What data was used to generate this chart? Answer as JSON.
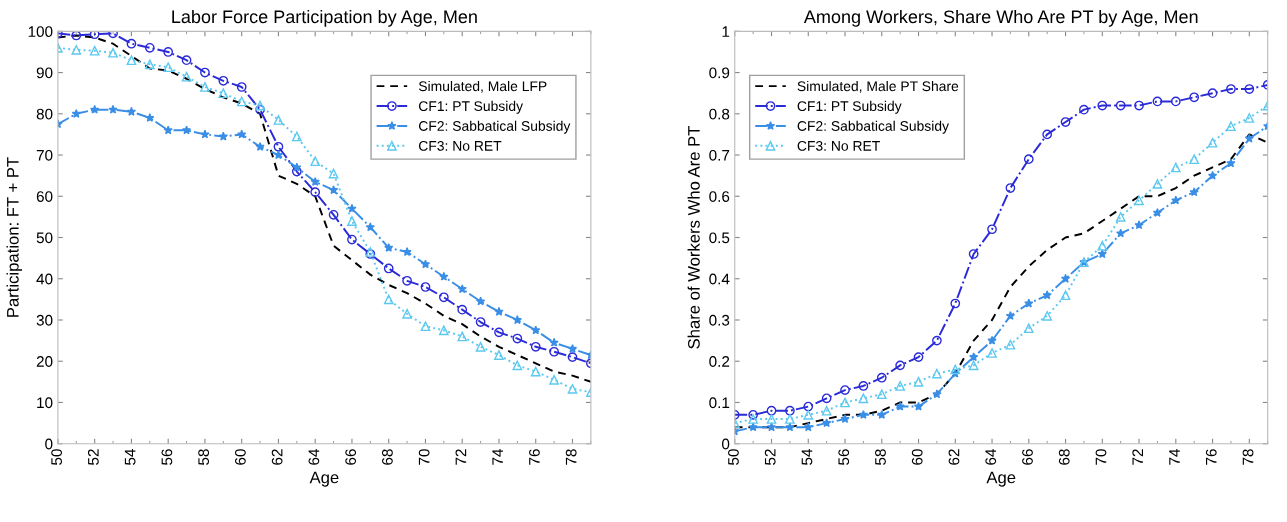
{
  "chart_data": [
    {
      "type": "line",
      "title": "Labor Force Participation by Age, Men",
      "xlabel": "Age",
      "ylabel": "Participation: FT + PT",
      "x": [
        50,
        51,
        52,
        53,
        54,
        55,
        56,
        57,
        58,
        59,
        60,
        61,
        62,
        63,
        64,
        65,
        66,
        67,
        68,
        69,
        70,
        71,
        72,
        73,
        74,
        75,
        76,
        77,
        78,
        79
      ],
      "xlim": [
        50,
        79
      ],
      "xticks": [
        50,
        52,
        54,
        56,
        58,
        60,
        62,
        64,
        66,
        68,
        70,
        72,
        74,
        76,
        78
      ],
      "ylim": [
        0,
        100
      ],
      "yticks": [
        0,
        10,
        20,
        30,
        40,
        50,
        60,
        70,
        80,
        90,
        100
      ],
      "grid": false,
      "legend": "top right",
      "series": [
        {
          "name": "Simulated, Male LFP",
          "color": "#000000",
          "line_style": "dashed",
          "marker": "none",
          "values": [
            98.5,
            99,
            98.5,
            97,
            94,
            91,
            90.5,
            88.5,
            86,
            84,
            82.5,
            80,
            65,
            63,
            60,
            48,
            44.5,
            41,
            38.5,
            36.5,
            34,
            31,
            29,
            26,
            23.5,
            21.5,
            19.5,
            17.5,
            16.5,
            15
          ]
        },
        {
          "name": "CF1: PT Subsidy",
          "color": "#2a2ad8",
          "line_style": "dashdot",
          "marker": "circle",
          "values": [
            99.5,
            99,
            99.3,
            99.5,
            97,
            96,
            95,
            93,
            90,
            88,
            86.5,
            81,
            72,
            66,
            61,
            55.5,
            49.5,
            46,
            42.5,
            39.5,
            38,
            35.5,
            32.5,
            29.5,
            27,
            25.5,
            23.5,
            22.3,
            21,
            19.5
          ]
        },
        {
          "name": "CF2: Sabbatical Subsidy",
          "color": "#3a8ee6",
          "line_style": "dashdot",
          "marker": "star",
          "values": [
            77.5,
            80,
            81,
            81,
            80.5,
            79,
            76,
            76,
            75,
            74.5,
            75,
            72,
            70,
            67,
            63.5,
            61.5,
            57,
            52.5,
            47.5,
            46.5,
            43.5,
            40.5,
            37.5,
            34.5,
            32,
            30,
            27.5,
            24.5,
            23,
            21.5
          ]
        },
        {
          "name": "CF3: No RET",
          "color": "#5cc8f0",
          "line_style": "dotted",
          "marker": "triangle",
          "values": [
            96,
            95.5,
            95.3,
            94.8,
            93,
            92,
            91.3,
            89,
            86.5,
            85,
            83,
            82,
            78.5,
            74.5,
            68.5,
            65.5,
            54,
            46.5,
            35,
            31.5,
            28.5,
            27.5,
            26,
            23.5,
            21.5,
            19,
            17.5,
            15.5,
            13.3,
            12.5
          ]
        }
      ]
    },
    {
      "type": "line",
      "title": "Among Workers, Share Who Are PT by Age, Men",
      "xlabel": "Age",
      "ylabel": "Share of Workers Who Are PT",
      "x": [
        50,
        51,
        52,
        53,
        54,
        55,
        56,
        57,
        58,
        59,
        60,
        61,
        62,
        63,
        64,
        65,
        66,
        67,
        68,
        69,
        70,
        71,
        72,
        73,
        74,
        75,
        76,
        77,
        78,
        79
      ],
      "xlim": [
        50,
        79
      ],
      "xticks": [
        50,
        52,
        54,
        56,
        58,
        60,
        62,
        64,
        66,
        68,
        70,
        72,
        74,
        76,
        78
      ],
      "ylim": [
        0,
        1
      ],
      "yticks": [
        0,
        0.1,
        0.2,
        0.3,
        0.4,
        0.5,
        0.6,
        0.7,
        0.8,
        0.9,
        1
      ],
      "grid": false,
      "legend": "top left",
      "series": [
        {
          "name": "Simulated, Male PT Share",
          "color": "#000000",
          "line_style": "dashed",
          "marker": "none",
          "values": [
            0.04,
            0.04,
            0.04,
            0.04,
            0.05,
            0.06,
            0.07,
            0.07,
            0.08,
            0.1,
            0.1,
            0.12,
            0.17,
            0.25,
            0.3,
            0.38,
            0.43,
            0.47,
            0.5,
            0.51,
            0.54,
            0.57,
            0.6,
            0.6,
            0.62,
            0.65,
            0.67,
            0.69,
            0.75,
            0.73
          ]
        },
        {
          "name": "CF1: PT Subsidy",
          "color": "#2a2ad8",
          "line_style": "dashdot",
          "marker": "circle",
          "values": [
            0.07,
            0.07,
            0.08,
            0.08,
            0.09,
            0.11,
            0.13,
            0.14,
            0.16,
            0.19,
            0.21,
            0.25,
            0.34,
            0.46,
            0.52,
            0.62,
            0.69,
            0.75,
            0.78,
            0.81,
            0.82,
            0.82,
            0.82,
            0.83,
            0.83,
            0.84,
            0.85,
            0.86,
            0.86,
            0.87
          ]
        },
        {
          "name": "CF2: Sabbatical Subsidy",
          "color": "#3a8ee6",
          "line_style": "dashdot",
          "marker": "star",
          "values": [
            0.03,
            0.04,
            0.04,
            0.04,
            0.04,
            0.05,
            0.06,
            0.07,
            0.07,
            0.09,
            0.09,
            0.12,
            0.17,
            0.21,
            0.25,
            0.31,
            0.34,
            0.36,
            0.4,
            0.44,
            0.46,
            0.51,
            0.53,
            0.56,
            0.59,
            0.61,
            0.65,
            0.68,
            0.74,
            0.77
          ]
        },
        {
          "name": "CF3: No RET",
          "color": "#5cc8f0",
          "line_style": "dotted",
          "marker": "triangle",
          "values": [
            0.05,
            0.06,
            0.06,
            0.06,
            0.07,
            0.08,
            0.1,
            0.11,
            0.12,
            0.14,
            0.15,
            0.17,
            0.18,
            0.19,
            0.22,
            0.24,
            0.28,
            0.31,
            0.36,
            0.44,
            0.48,
            0.55,
            0.59,
            0.63,
            0.67,
            0.69,
            0.73,
            0.77,
            0.79,
            0.82
          ]
        }
      ]
    }
  ]
}
